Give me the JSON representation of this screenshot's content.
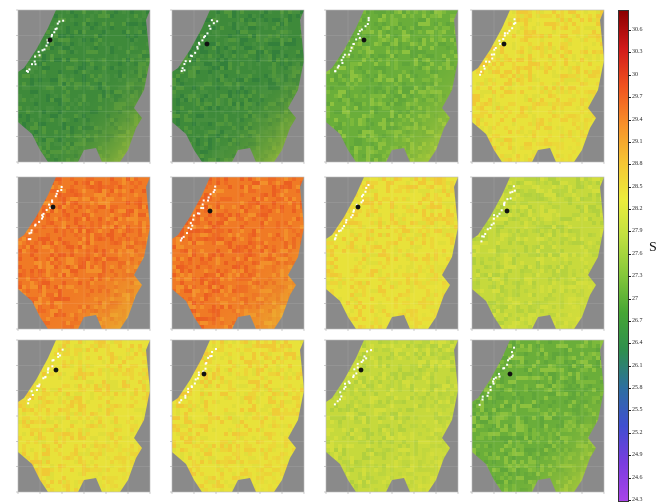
{
  "figure": {
    "rows": 3,
    "cols": 4,
    "panels": [
      {
        "tone": "low"
      },
      {
        "tone": "low"
      },
      {
        "tone": "lowmid"
      },
      {
        "tone": "mid"
      },
      {
        "tone": "high"
      },
      {
        "tone": "high"
      },
      {
        "tone": "mid"
      },
      {
        "tone": "midlow"
      },
      {
        "tone": "mid"
      },
      {
        "tone": "mid"
      },
      {
        "tone": "midlow"
      },
      {
        "tone": "lowmid"
      }
    ]
  },
  "colorbar": {
    "label": "S",
    "ticks": [
      "30.6",
      "30.3",
      "30",
      "29.7",
      "29.4",
      "29.1",
      "28.8",
      "28.5",
      "28.2",
      "27.9",
      "27.6",
      "27.3",
      "27",
      "26.7",
      "26.4",
      "26.1",
      "25.8",
      "25.5",
      "25.2",
      "24.9",
      "24.6",
      "24.3"
    ],
    "colors_top_to_bottom": [
      "#8b0000",
      "#d21a1a",
      "#f0521e",
      "#f7902a",
      "#f6c433",
      "#eded3c",
      "#bfe040",
      "#85c83a",
      "#46a634",
      "#2e8f4e",
      "#2d6fa0",
      "#3f4fd0",
      "#7a3ce0",
      "#a844e8"
    ]
  },
  "land_color": "#8a8a8a"
}
